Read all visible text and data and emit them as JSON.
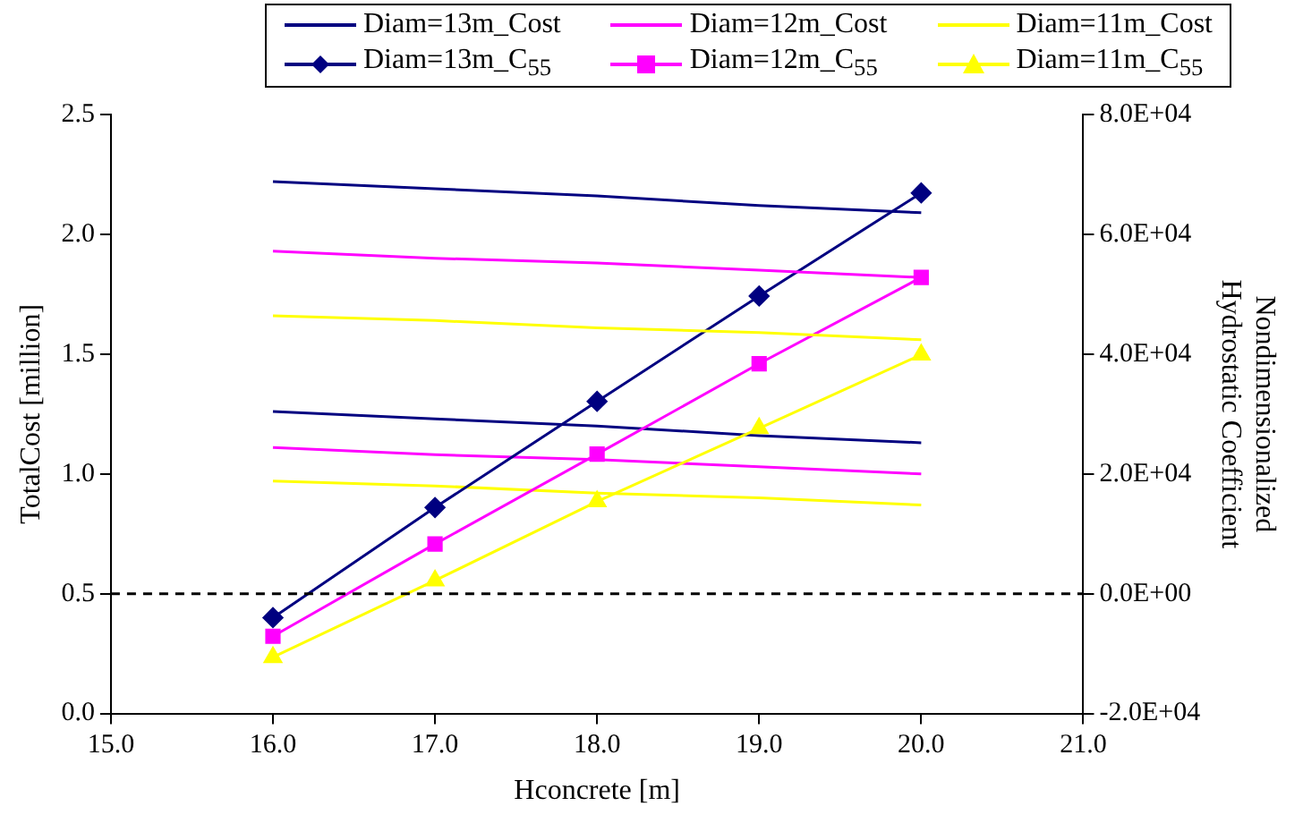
{
  "chart_data": {
    "type": "line",
    "xlabel": "Hconcrete [m]",
    "ylabel": "TotalCost [million]",
    "y2label": "Nondimensionalized\nHydrostatic Coefficient",
    "x": [
      16,
      17,
      18,
      19,
      20
    ],
    "series": [
      {
        "name": "Diam=13m_Cost",
        "color": "#000080",
        "values": [
          2.22,
          2.19,
          2.16,
          2.12,
          2.09
        ]
      },
      {
        "name": "Diam=12m_Cost",
        "color": "#ff00ff",
        "values": [
          1.93,
          1.9,
          1.88,
          1.85,
          1.82
        ]
      },
      {
        "name": "Diam=11m_Cost",
        "color": "#ffff00",
        "values": [
          1.66,
          1.64,
          1.61,
          1.59,
          1.56
        ]
      },
      {
        "name": "Diam=13m_C$_{55}$",
        "color": "#000080",
        "axis": "y2",
        "values": [
          -4000,
          14400,
          32100,
          49700,
          66900
        ],
        "marker": "diamond"
      },
      {
        "name": "Diam=12m_C$_{55}$",
        "color": "#ff00ff",
        "axis": "y2",
        "values": [
          -7100,
          8300,
          23300,
          38400,
          52800
        ],
        "marker": "square"
      },
      {
        "name": "Diam=11m_C$_{55}$",
        "color": "#ffff00",
        "axis": "y2",
        "values": [
          -10600,
          2200,
          15400,
          27600,
          39900
        ],
        "marker": "triangle"
      },
      {
        "color": "#000080",
        "values": [
          1.26,
          1.23,
          1.2,
          1.16,
          1.13
        ]
      },
      {
        "color": "#ff00ff",
        "values": [
          1.11,
          1.08,
          1.06,
          1.03,
          1.0
        ]
      },
      {
        "color": "#ffff00",
        "values": [
          0.97,
          0.95,
          0.92,
          0.9,
          0.87
        ]
      }
    ],
    "xlim": [
      15,
      21
    ],
    "xticks": [
      {
        "value": 15,
        "label": "15.0"
      },
      {
        "value": 16,
        "label": "16.0"
      },
      {
        "value": 17,
        "label": "17.0"
      },
      {
        "value": 18,
        "label": "18.0"
      },
      {
        "value": 19,
        "label": "19.0"
      },
      {
        "value": 20,
        "label": "20.0"
      },
      {
        "value": 21,
        "label": "21.0"
      }
    ],
    "ylim": [
      0,
      2.5
    ],
    "yticks": [
      {
        "value": 0,
        "label": "0.0"
      },
      {
        "value": 0.5,
        "label": "0.5"
      },
      {
        "value": 1,
        "label": "1.0"
      },
      {
        "value": 1.5,
        "label": "1.5"
      },
      {
        "value": 2,
        "label": "2.0"
      },
      {
        "value": 2.5,
        "label": "2.5"
      }
    ],
    "y2lim": [
      -20000,
      80000
    ],
    "y2ticks": [
      {
        "value": -20000,
        "label": "-2.0E+04"
      },
      {
        "value": 0,
        "label": "0.0E+00"
      },
      {
        "value": 20000,
        "label": "2.0E+04"
      },
      {
        "value": 40000,
        "label": "4.0E+04"
      },
      {
        "value": 60000,
        "label": "6.0E+04"
      },
      {
        "value": 80000,
        "label": "8.0E+04"
      }
    ],
    "ref_lines": [
      {
        "axis": "y2",
        "value": 0,
        "color": "#000000",
        "line_style": "dashed"
      }
    ],
    "grid": false,
    "legend": "top"
  }
}
